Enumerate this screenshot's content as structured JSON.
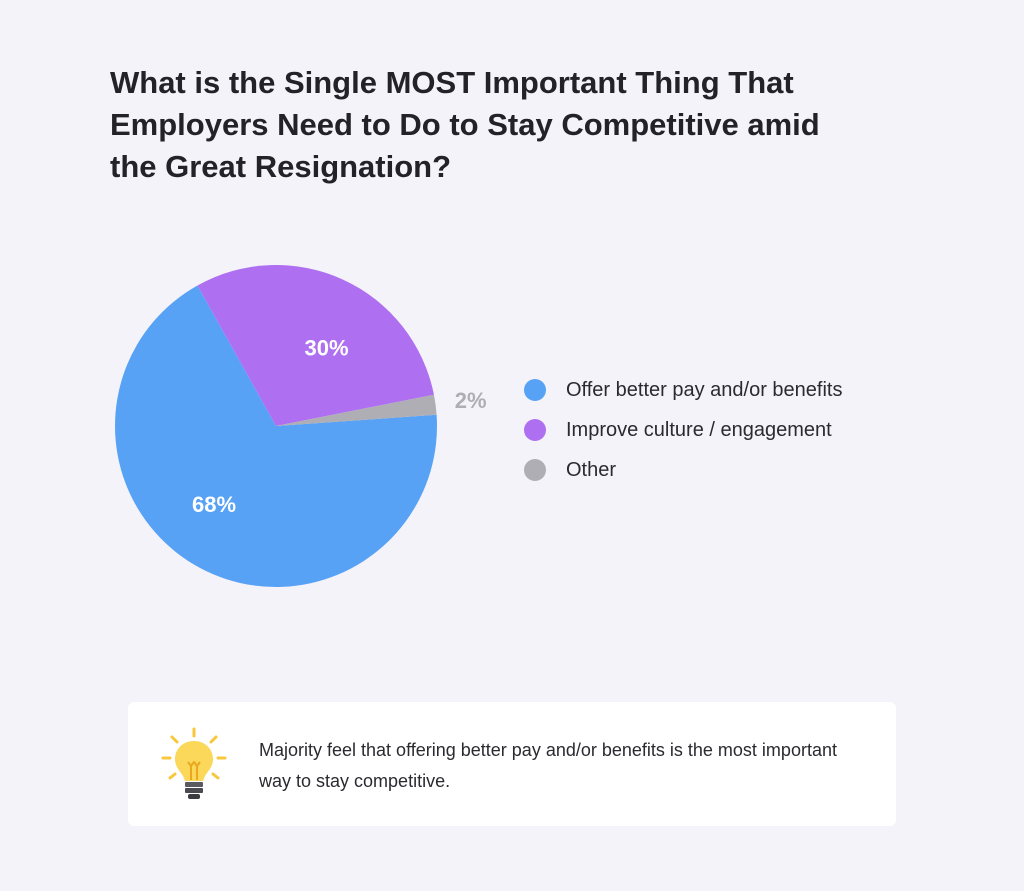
{
  "chart_data": {
    "type": "pie",
    "title": "What is the Single MOST Important Thing That Employers Need to Do to Stay Competitive amid the Great Resignation?",
    "title_lines": [
      "What is the Single MOST Important Thing That",
      "Employers Need to Do to Stay Competitive amid",
      "the Great Resignation?"
    ],
    "categories": [
      "Offer better pay and/or benefits",
      "Improve culture / engagement",
      "Other"
    ],
    "values": [
      68,
      30,
      2
    ],
    "labels": [
      "68%",
      "30%",
      "2%"
    ],
    "colors": [
      "#58a2f5",
      "#ae70f0",
      "#aeaeb4"
    ],
    "label_colors": [
      "#ffffff",
      "#ffffff",
      "#aeaeb4"
    ],
    "legend_position": "right",
    "unit": "%"
  },
  "insight": {
    "icon": "lightbulb-icon",
    "text": "Majority feel that offering better pay and/or benefits is the most important way to stay competitive."
  }
}
